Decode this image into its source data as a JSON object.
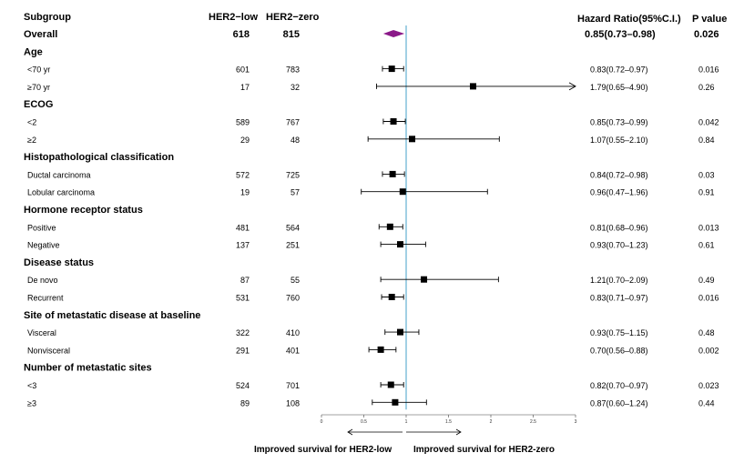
{
  "headers": {
    "subgroup": "Subgroup",
    "her2_low": "HER2−low",
    "her2_zero": "HER2−zero",
    "hr": "Hazard Ratio(95%C.I.)",
    "p": "P value"
  },
  "footer": {
    "left": "Improved survival for HER2-low",
    "right": "Improved survival for HER2-zero"
  },
  "chart_data": {
    "type": "forest",
    "reference_line": 1,
    "xlim": [
      0,
      3
    ],
    "x_ticks": [
      "0",
      "0.5",
      "1",
      "1.5",
      "2",
      "2.5",
      "3"
    ],
    "rows": [
      {
        "kind": "overall",
        "label": "Overall",
        "n_low": "618",
        "n_zero": "815",
        "hr": 0.85,
        "lo": 0.73,
        "hi": 0.98,
        "hr_text": "0.85(0.73–0.98)",
        "p": "0.026"
      },
      {
        "kind": "group",
        "label": "Age"
      },
      {
        "kind": "item",
        "label": "<70 yr",
        "n_low": "601",
        "n_zero": "783",
        "hr": 0.83,
        "lo": 0.72,
        "hi": 0.97,
        "hr_text": "0.83(0.72–0.97)",
        "p": "0.016"
      },
      {
        "kind": "item",
        "label": "≥70 yr",
        "n_low": "17",
        "n_zero": "32",
        "hr": 1.79,
        "lo": 0.65,
        "hi": 4.9,
        "hr_text": "1.79(0.65–4.90)",
        "p": "0.26",
        "arrow": true
      },
      {
        "kind": "group",
        "label": "ECOG"
      },
      {
        "kind": "item",
        "label": "<2",
        "n_low": "589",
        "n_zero": "767",
        "hr": 0.85,
        "lo": 0.73,
        "hi": 0.99,
        "hr_text": "0.85(0.73–0.99)",
        "p": "0.042"
      },
      {
        "kind": "item",
        "label": "≥2",
        "n_low": "29",
        "n_zero": "48",
        "hr": 1.07,
        "lo": 0.55,
        "hi": 2.1,
        "hr_text": "1.07(0.55–2.10)",
        "p": "0.84"
      },
      {
        "kind": "group",
        "label": "Histopathological classification"
      },
      {
        "kind": "item",
        "label": "Ductal carcinoma",
        "n_low": "572",
        "n_zero": "725",
        "hr": 0.84,
        "lo": 0.72,
        "hi": 0.98,
        "hr_text": "0.84(0.72–0.98)",
        "p": "0.03"
      },
      {
        "kind": "item",
        "label": "Lobular carcinoma",
        "n_low": "19",
        "n_zero": "57",
        "hr": 0.96,
        "lo": 0.47,
        "hi": 1.96,
        "hr_text": "0.96(0.47–1.96)",
        "p": "0.91"
      },
      {
        "kind": "group",
        "label": "Hormone receptor status"
      },
      {
        "kind": "item",
        "label": "Positive",
        "n_low": "481",
        "n_zero": "564",
        "hr": 0.81,
        "lo": 0.68,
        "hi": 0.96,
        "hr_text": "0.81(0.68–0.96)",
        "p": "0.013"
      },
      {
        "kind": "item",
        "label": "Negative",
        "n_low": "137",
        "n_zero": "251",
        "hr": 0.93,
        "lo": 0.7,
        "hi": 1.23,
        "hr_text": "0.93(0.70–1.23)",
        "p": "0.61"
      },
      {
        "kind": "group",
        "label": "Disease status"
      },
      {
        "kind": "item",
        "label": "De novo",
        "n_low": "87",
        "n_zero": "55",
        "hr": 1.21,
        "lo": 0.7,
        "hi": 2.09,
        "hr_text": "1.21(0.70–2.09)",
        "p": "0.49"
      },
      {
        "kind": "item",
        "label": "Recurrent",
        "n_low": "531",
        "n_zero": "760",
        "hr": 0.83,
        "lo": 0.71,
        "hi": 0.97,
        "hr_text": "0.83(0.71–0.97)",
        "p": "0.016"
      },
      {
        "kind": "group",
        "label": "Site of metastatic disease at baseline"
      },
      {
        "kind": "item",
        "label": "Visceral",
        "n_low": "322",
        "n_zero": "410",
        "hr": 0.93,
        "lo": 0.75,
        "hi": 1.15,
        "hr_text": "0.93(0.75–1.15)",
        "p": "0.48"
      },
      {
        "kind": "item",
        "label": "Nonvisceral",
        "n_low": "291",
        "n_zero": "401",
        "hr": 0.7,
        "lo": 0.56,
        "hi": 0.88,
        "hr_text": "0.70(0.56–0.88)",
        "p": "0.002"
      },
      {
        "kind": "group",
        "label": "Number of metastatic sites"
      },
      {
        "kind": "item",
        "label": "<3",
        "n_low": "524",
        "n_zero": "701",
        "hr": 0.82,
        "lo": 0.7,
        "hi": 0.97,
        "hr_text": "0.82(0.70–0.97)",
        "p": "0.023"
      },
      {
        "kind": "item",
        "label": "≥3",
        "n_low": "89",
        "n_zero": "108",
        "hr": 0.87,
        "lo": 0.6,
        "hi": 1.24,
        "hr_text": "0.87(0.60–1.24)",
        "p": "0.44"
      }
    ],
    "colors": {
      "reference": "#6fb7d6",
      "overall": "#8b1a89",
      "marker": "#000000"
    }
  }
}
